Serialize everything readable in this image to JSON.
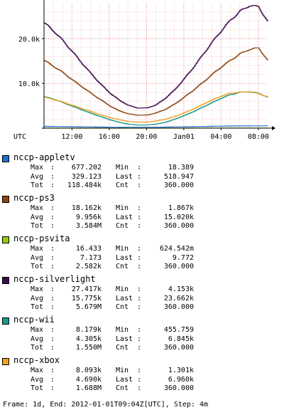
{
  "chart_data": {
    "type": "line",
    "timezone_label": "UTC",
    "x_ticks": [
      "12:00",
      "16:00",
      "20:00",
      "Jan01",
      "04:00",
      "08:00"
    ],
    "y_ticks": [
      "10.0k",
      "20.0k"
    ],
    "ylim": [
      0,
      28000
    ],
    "xlim": [
      0,
      24
    ],
    "x_tick_hours": [
      3,
      7,
      11,
      15,
      19,
      23
    ],
    "y_tick_values": [
      10000,
      20000
    ],
    "grid": true,
    "series": [
      {
        "name": "nccp-appletv",
        "color": "#1f6fd1",
        "x": [
          0,
          4,
          8,
          12,
          16,
          20,
          24
        ],
        "y": [
          400,
          300,
          180,
          200,
          330,
          480,
          519
        ]
      },
      {
        "name": "nccp-ps3",
        "color": "#8b4513",
        "x": [
          0,
          1,
          2,
          3,
          4,
          5,
          6,
          7,
          8,
          9,
          10,
          11,
          12,
          13,
          14,
          15,
          16,
          17,
          18,
          19,
          20,
          21,
          22,
          23,
          24
        ],
        "y": [
          15100,
          13800,
          12400,
          10800,
          9300,
          7800,
          6400,
          5000,
          3900,
          3200,
          2900,
          2900,
          3400,
          4200,
          5400,
          6900,
          8500,
          10200,
          12000,
          13700,
          15200,
          16600,
          17600,
          17900,
          15020
        ]
      },
      {
        "name": "nccp-psvita",
        "color": "#99cc00",
        "x": [
          0,
          4,
          8,
          12,
          16,
          20,
          24
        ],
        "y": [
          8,
          7,
          5,
          6,
          8,
          9,
          10
        ]
      },
      {
        "name": "nccp-silverlight",
        "color": "#3d0a4d",
        "x": [
          0,
          1,
          2,
          3,
          4,
          5,
          6,
          7,
          8,
          9,
          10,
          11,
          12,
          13,
          14,
          15,
          16,
          17,
          18,
          19,
          20,
          21,
          22,
          23,
          24
        ],
        "y": [
          23500,
          21700,
          19500,
          17100,
          14600,
          12200,
          9900,
          7900,
          6300,
          5100,
          4500,
          4500,
          5200,
          6700,
          8600,
          11000,
          13600,
          16400,
          19200,
          21800,
          24200,
          26100,
          27400,
          27100,
          23662
        ]
      },
      {
        "name": "nccp-wii",
        "color": "#1a9a8c",
        "x": [
          0,
          1,
          2,
          3,
          4,
          5,
          6,
          7,
          8,
          9,
          10,
          11,
          12,
          13,
          14,
          15,
          16,
          17,
          18,
          19,
          20,
          21,
          22,
          23,
          24
        ],
        "y": [
          7000,
          6500,
          5700,
          4900,
          4100,
          3300,
          2600,
          1900,
          1300,
          900,
          700,
          700,
          900,
          1300,
          2000,
          2800,
          3700,
          4700,
          5700,
          6700,
          7500,
          8000,
          8150,
          7800,
          6845
        ]
      },
      {
        "name": "nccp-xbox",
        "color": "#f0a020",
        "x": [
          0,
          1,
          2,
          3,
          4,
          5,
          6,
          7,
          8,
          9,
          10,
          11,
          12,
          13,
          14,
          15,
          16,
          17,
          18,
          19,
          20,
          21,
          22,
          23,
          24
        ],
        "y": [
          6900,
          6400,
          5800,
          5100,
          4400,
          3700,
          3000,
          2400,
          1900,
          1500,
          1350,
          1350,
          1600,
          2000,
          2600,
          3400,
          4300,
          5300,
          6300,
          7200,
          7800,
          8050,
          8080,
          7700,
          6960
        ]
      }
    ]
  },
  "legend": [
    {
      "name": "nccp-appletv",
      "color": "#1f6fd1",
      "max": "677.202",
      "min": "18.389",
      "avg": "329.123",
      "last": "518.947",
      "tot": "118.484k",
      "cnt": "360.000"
    },
    {
      "name": "nccp-ps3",
      "color": "#8b4513",
      "max": "18.162k",
      "min": "1.867k",
      "avg": "9.956k",
      "last": "15.020k",
      "tot": "3.584M",
      "cnt": "360.000"
    },
    {
      "name": "nccp-psvita",
      "color": "#99cc00",
      "max": "16.433",
      "min": "624.542m",
      "avg": "7.173",
      "last": "9.772",
      "tot": "2.582k",
      "cnt": "360.000"
    },
    {
      "name": "nccp-silverlight",
      "color": "#3d0a4d",
      "max": "27.417k",
      "min": "4.153k",
      "avg": "15.775k",
      "last": "23.662k",
      "tot": "5.679M",
      "cnt": "360.000"
    },
    {
      "name": "nccp-wii",
      "color": "#1a9a8c",
      "max": "8.179k",
      "min": "455.759",
      "avg": "4.305k",
      "last": "6.845k",
      "tot": "1.550M",
      "cnt": "360.000"
    },
    {
      "name": "nccp-xbox",
      "color": "#f0a020",
      "max": "8.093k",
      "min": "1.301k",
      "avg": "4.690k",
      "last": "6.960k",
      "tot": "1.688M",
      "cnt": "360.000"
    }
  ],
  "labels": {
    "max": "Max",
    "min": "Min",
    "avg": "Avg",
    "last": "Last",
    "tot": "Tot",
    "cnt": "Cnt"
  },
  "footer": "Frame: 1d, End: 2012-01-01T09:04Z[UTC], Step: 4m"
}
